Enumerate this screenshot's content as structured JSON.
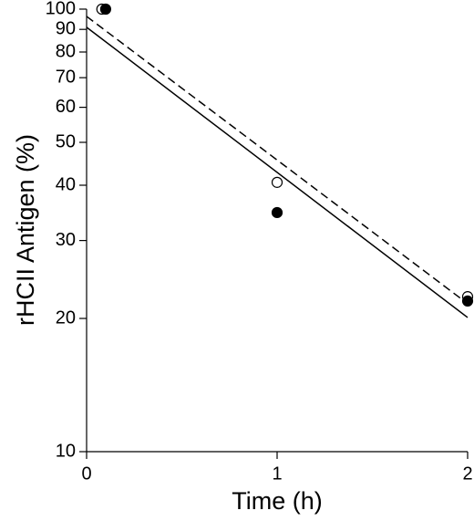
{
  "chart_data": {
    "type": "scatter",
    "x_label": "Time (h)",
    "y_label": "rHCII Antigen (%)",
    "xlim": [
      0,
      2
    ],
    "xticks": [
      0,
      1,
      2
    ],
    "ylim": [
      10,
      100
    ],
    "yticks": [
      10,
      20,
      30,
      40,
      50,
      60,
      70,
      80,
      90,
      100
    ],
    "y_scale": "log",
    "grid": false,
    "series": [
      {
        "marker": "open",
        "color": "#000000",
        "x": [
          0.08,
          1,
          2
        ],
        "values": [
          100,
          40.6,
          22.4
        ]
      },
      {
        "marker": "filled",
        "color": "#000000",
        "x": [
          0.1,
          1,
          2
        ],
        "values": [
          100,
          34.7,
          21.9
        ]
      },
      {
        "line_style": "dashed",
        "color": "#000000",
        "x": [
          0,
          2
        ],
        "values": [
          96.3,
          21.6
        ]
      },
      {
        "line_style": "solid",
        "color": "#000000",
        "x": [
          0,
          2
        ],
        "values": [
          91,
          20.1
        ]
      }
    ]
  }
}
